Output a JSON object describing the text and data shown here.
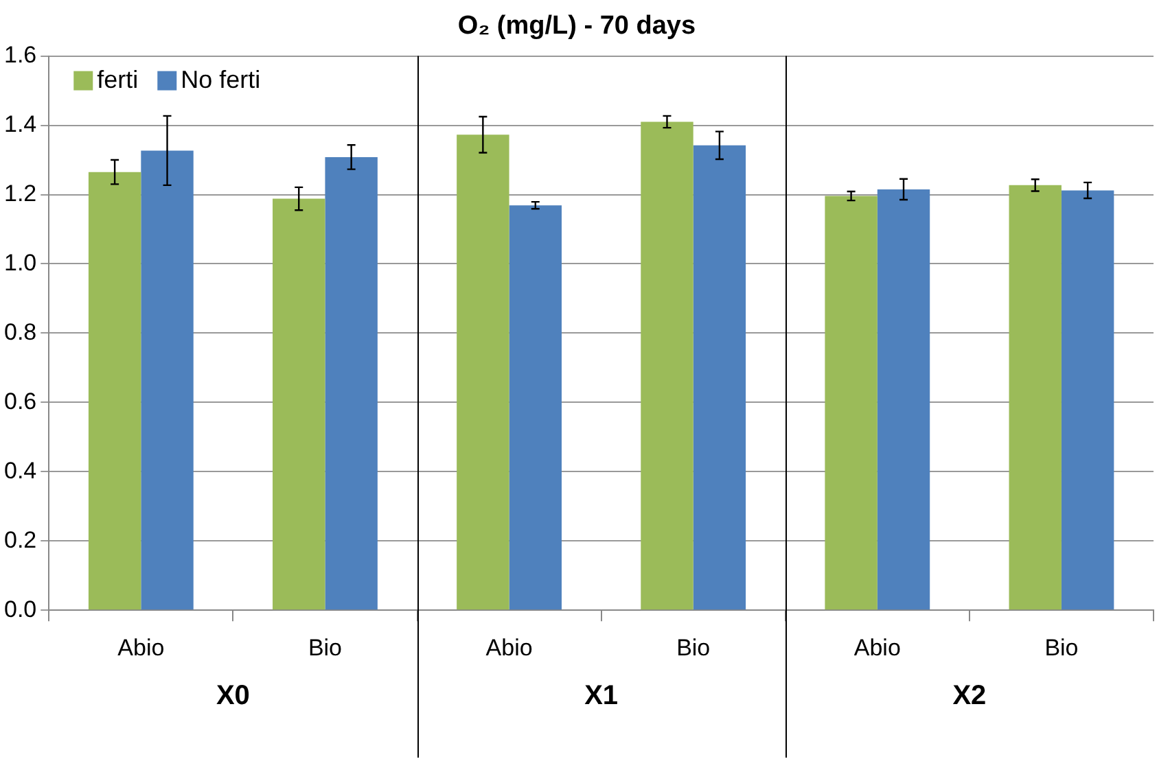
{
  "chart_data": {
    "type": "bar",
    "title": "O₂ (mg/L) - 70 days",
    "categories": [
      "Abio",
      "Bio",
      "Abio",
      "Bio",
      "Abio",
      "Bio"
    ],
    "annotations": [
      "X0",
      "X1",
      "X2"
    ],
    "series": [
      {
        "name": "ferti",
        "color": "#9bbb59",
        "values": [
          1.265,
          1.188,
          1.373,
          1.41,
          1.196,
          1.227
        ],
        "errors": [
          0.035,
          0.033,
          0.052,
          0.017,
          0.013,
          0.017
        ]
      },
      {
        "name": "No ferti",
        "color": "#4f81bd",
        "values": [
          1.327,
          1.308,
          1.169,
          1.342,
          1.215,
          1.212
        ],
        "errors": [
          0.1,
          0.035,
          0.01,
          0.04,
          0.03,
          0.023
        ]
      }
    ],
    "ylim": [
      0,
      1.6
    ],
    "yticks": [
      {
        "value": 0,
        "label": "0.0"
      },
      {
        "value": 0.2,
        "label": "0.2"
      },
      {
        "value": 0.4,
        "label": "0.4"
      },
      {
        "value": 0.6,
        "label": "0.6"
      },
      {
        "value": 0.8,
        "label": "0.8"
      },
      {
        "value": 1,
        "label": "1.0"
      },
      {
        "value": 1.2,
        "label": "1.2"
      },
      {
        "value": 1.4,
        "label": "1.4"
      },
      {
        "value": 1.6,
        "label": "1.6"
      }
    ],
    "grid": "y",
    "legend": "top left"
  }
}
